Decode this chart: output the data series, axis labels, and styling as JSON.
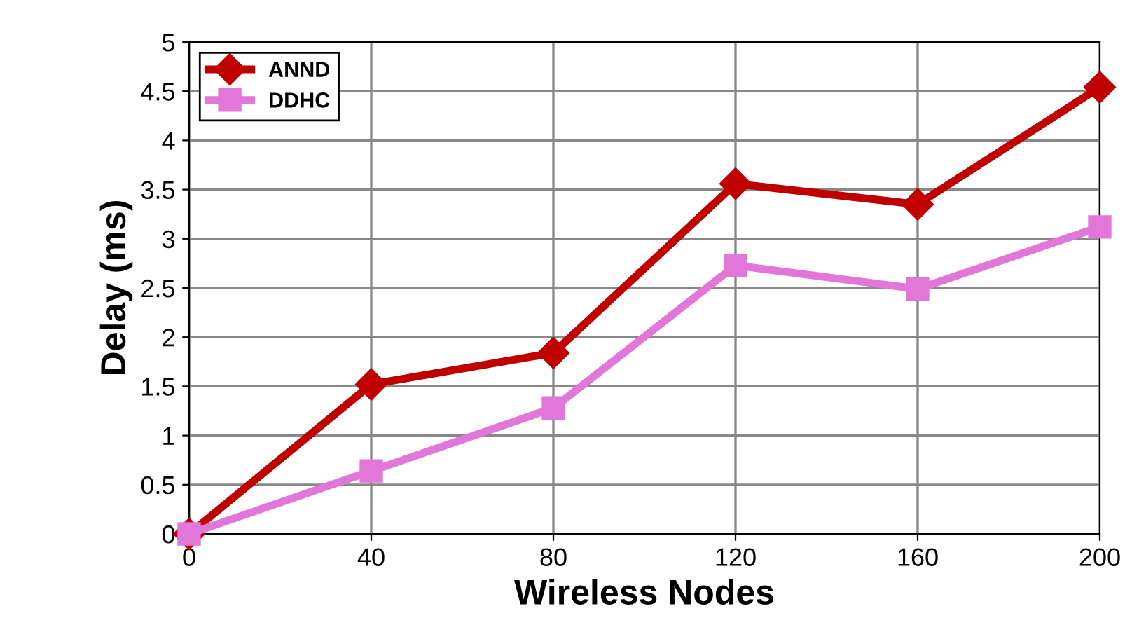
{
  "chart_data": {
    "type": "line",
    "xlabel": "Wireless Nodes",
    "ylabel": "Delay (ms)",
    "x": [
      0,
      40,
      80,
      120,
      160,
      200
    ],
    "series": [
      {
        "name": "ANND",
        "color": "#c00000",
        "marker": "diamond",
        "values": [
          0,
          1.52,
          1.84,
          3.56,
          3.35,
          4.54
        ]
      },
      {
        "name": "DDHC",
        "color": "#e377d9",
        "marker": "square",
        "values": [
          0,
          0.64,
          1.28,
          2.73,
          2.49,
          3.12
        ]
      }
    ],
    "xlim": [
      0,
      200
    ],
    "xticks": [
      0,
      40,
      80,
      120,
      160,
      200
    ],
    "ylim": [
      0,
      5
    ],
    "yticks": [
      0,
      0.5,
      1,
      1.5,
      2,
      2.5,
      3,
      3.5,
      4,
      4.5,
      5
    ],
    "grid": true,
    "legend": "top left"
  }
}
